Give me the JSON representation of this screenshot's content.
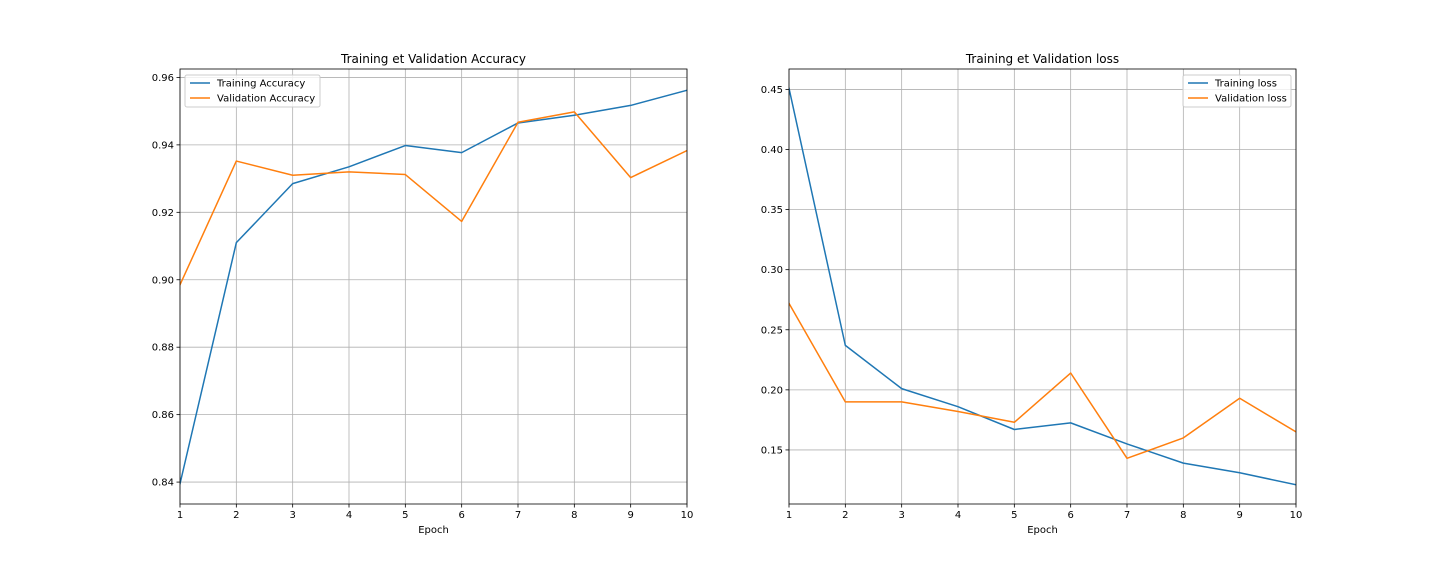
{
  "chart_data": [
    {
      "type": "line",
      "title": "Training et Validation Accuracy",
      "xlabel": "Epoch",
      "ylabel": "",
      "x": [
        1,
        2,
        3,
        4,
        5,
        6,
        7,
        8,
        9,
        10
      ],
      "xlim": [
        1,
        10
      ],
      "ylim": [
        0.8335,
        0.9625
      ],
      "xticks": [
        1,
        2,
        3,
        4,
        5,
        6,
        7,
        8,
        9,
        10
      ],
      "xtick_labels": [
        "1",
        "2",
        "3",
        "4",
        "5",
        "6",
        "7",
        "8",
        "9",
        "10"
      ],
      "yticks": [
        0.84,
        0.86,
        0.88,
        0.9,
        0.92,
        0.94,
        0.96
      ],
      "ytick_labels": [
        "0.84",
        "0.86",
        "0.88",
        "0.90",
        "0.92",
        "0.94",
        "0.96"
      ],
      "grid": true,
      "legend_position": "upper-left",
      "series": [
        {
          "name": "Training Accuracy",
          "color": "#1f77b4",
          "values": [
            0.8395,
            0.911,
            0.9285,
            0.9335,
            0.9398,
            0.9377,
            0.9465,
            0.9488,
            0.9517,
            0.9562
          ]
        },
        {
          "name": "Validation Accuracy",
          "color": "#ff7f0e",
          "values": [
            0.8985,
            0.9352,
            0.931,
            0.932,
            0.9312,
            0.9173,
            0.9467,
            0.9498,
            0.9303,
            0.9383
          ]
        }
      ]
    },
    {
      "type": "line",
      "title": "Training et Validation loss",
      "xlabel": "Epoch",
      "ylabel": "",
      "x": [
        1,
        2,
        3,
        4,
        5,
        6,
        7,
        8,
        9,
        10
      ],
      "xlim": [
        1,
        10
      ],
      "ylim": [
        0.105,
        0.467
      ],
      "xticks": [
        1,
        2,
        3,
        4,
        5,
        6,
        7,
        8,
        9,
        10
      ],
      "xtick_labels": [
        "1",
        "2",
        "3",
        "4",
        "5",
        "6",
        "7",
        "8",
        "9",
        "10"
      ],
      "yticks": [
        0.15,
        0.2,
        0.25,
        0.3,
        0.35,
        0.4,
        0.45
      ],
      "ytick_labels": [
        "0.15",
        "0.20",
        "0.25",
        "0.30",
        "0.35",
        "0.40",
        "0.45"
      ],
      "grid": true,
      "legend_position": "upper-right",
      "series": [
        {
          "name": "Training loss",
          "color": "#1f77b4",
          "values": [
            0.451,
            0.237,
            0.201,
            0.186,
            0.167,
            0.1725,
            0.155,
            0.139,
            0.131,
            0.121
          ]
        },
        {
          "name": "Validation loss",
          "color": "#ff7f0e",
          "values": [
            0.272,
            0.19,
            0.19,
            0.182,
            0.173,
            0.214,
            0.143,
            0.16,
            0.193,
            0.165
          ]
        }
      ]
    }
  ]
}
